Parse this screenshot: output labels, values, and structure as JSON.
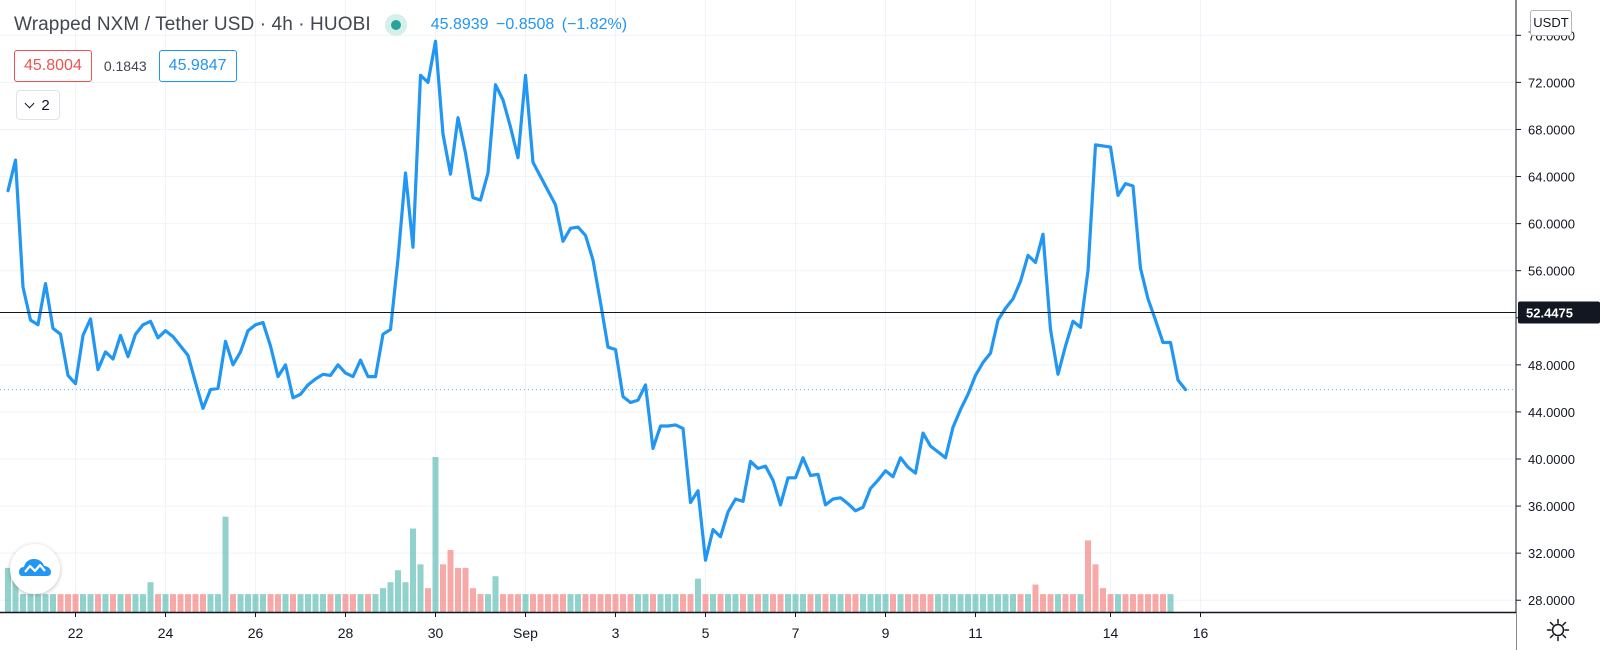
{
  "header": {
    "symbol": "Wrapped NXM / Tether USD · 4h · HUOBI",
    "ohlc_text": "45.8939  −0.8508  (−1.82%)",
    "sell_price": "45.8004",
    "spread": "0.1843",
    "buy_price": "45.9847",
    "indicators_collapsed_count": "2",
    "currency": "USDT"
  },
  "colors": {
    "line": "#2196f3",
    "volume_up": "#26a69a",
    "volume_down": "#ef5350",
    "grid": "#f0f3fa",
    "axis_text": "#131722"
  },
  "icons": [
    "chevron-down-icon",
    "tradingview-logo-icon",
    "settings-gear-icon",
    "live-status-dot-icon"
  ],
  "chart_data": {
    "type": "line",
    "y_axis_ticks": [
      "28.0000",
      "32.0000",
      "36.0000",
      "40.0000",
      "44.0000",
      "48.0000",
      "52.0000",
      "56.0000",
      "60.0000",
      "64.0000",
      "68.0000",
      "72.0000",
      "76.0000"
    ],
    "y_tick_values": [
      28,
      32,
      36,
      40,
      44,
      48,
      52,
      56,
      60,
      64,
      68,
      72,
      76
    ],
    "ylim": [
      27.0,
      79.0
    ],
    "x_axis_ticks": [
      "22",
      "24",
      "26",
      "28",
      "30",
      "Sep",
      "3",
      "5",
      "7",
      "9",
      "11",
      "14",
      "16"
    ],
    "x_tick_index": [
      9,
      21,
      33,
      45,
      57,
      69,
      81,
      93,
      105,
      117,
      129,
      147,
      159
    ],
    "crosshair_price": "52.4475",
    "crosshair_value": 52.4475,
    "last_price_value": 45.89,
    "series": [
      {
        "values": [
          62.8,
          65.4,
          54.6,
          51.8,
          51.4,
          54.9,
          51.1,
          50.6,
          47.1,
          46.4,
          50.5,
          51.9,
          47.6,
          49.1,
          48.5,
          50.5,
          48.7,
          50.6,
          51.4,
          51.7,
          50.3,
          50.9,
          50.4,
          49.6,
          48.8,
          46.5,
          44.3,
          45.9,
          46.0,
          50.0,
          48.0,
          49.1,
          50.9,
          51.4,
          51.6,
          49.6,
          47.0,
          48.0,
          45.2,
          45.5,
          46.3,
          46.8,
          47.2,
          47.1,
          48.0,
          47.3,
          47.0,
          48.4,
          47.0,
          47.0,
          50.6,
          51.0,
          57.0,
          64.3,
          58.0,
          72.6,
          72.0,
          75.5,
          67.6,
          64.2,
          69.0,
          66.0,
          62.2,
          62.0,
          64.3,
          71.8,
          70.5,
          68.2,
          65.6,
          72.6,
          65.2,
          64.0,
          62.8,
          61.6,
          58.5,
          59.6,
          59.7,
          59.0,
          56.9,
          53.3,
          49.5,
          49.3,
          45.3,
          44.8,
          45.0,
          46.3,
          40.9,
          42.8,
          42.8,
          42.9,
          42.6,
          36.3,
          37.3,
          31.4,
          34.0,
          33.4,
          35.5,
          36.6,
          36.4,
          39.8,
          39.2,
          39.4,
          38.2,
          36.1,
          38.4,
          38.4,
          40.1,
          38.6,
          38.7,
          36.1,
          36.6,
          36.7,
          36.2,
          35.6,
          35.9,
          37.5,
          38.2,
          39.0,
          38.5,
          40.1,
          39.3,
          38.8,
          42.2,
          41.1,
          40.6,
          40.1,
          42.7,
          44.2,
          45.5,
          47.1,
          48.2,
          49.0,
          51.8,
          52.8,
          53.6,
          55.1,
          57.3,
          56.7,
          59.1,
          51.0,
          47.2,
          49.6,
          51.7,
          51.2,
          56.0,
          66.7,
          66.6,
          66.5,
          62.4,
          63.4,
          63.2,
          56.2,
          53.6,
          51.8,
          49.9,
          49.9,
          46.7,
          45.9
        ]
      }
    ],
    "volume": {
      "values": [
        3.7,
        3.7,
        1.5,
        1.5,
        1.5,
        1.5,
        1.5,
        1.5,
        1.5,
        1.5,
        1.5,
        1.5,
        1.5,
        1.5,
        1.5,
        1.5,
        1.5,
        1.5,
        1.5,
        2.5,
        1.5,
        1.5,
        1.5,
        1.5,
        1.5,
        1.5,
        1.5,
        1.5,
        1.5,
        8.0,
        1.5,
        1.5,
        1.5,
        1.5,
        1.5,
        1.5,
        1.5,
        1.5,
        1.5,
        1.5,
        1.5,
        1.5,
        1.5,
        1.5,
        1.5,
        1.5,
        1.5,
        1.5,
        1.5,
        1.5,
        2.0,
        2.5,
        3.5,
        2.5,
        7.0,
        4.0,
        2.0,
        13.0,
        4.0,
        5.2,
        3.7,
        3.7,
        2.0,
        1.5,
        1.5,
        3.0,
        1.5,
        1.5,
        1.5,
        1.5,
        1.5,
        1.5,
        1.5,
        1.5,
        1.5,
        1.5,
        1.5,
        1.5,
        1.5,
        1.5,
        1.5,
        1.5,
        1.5,
        1.5,
        1.5,
        1.5,
        1.5,
        1.5,
        1.5,
        1.5,
        1.5,
        1.5,
        2.8,
        1.5,
        1.5,
        1.5,
        1.5,
        1.5,
        1.5,
        1.5,
        1.5,
        1.5,
        1.5,
        1.5,
        1.5,
        1.5,
        1.5,
        1.5,
        1.5,
        1.5,
        1.5,
        1.5,
        1.5,
        1.5,
        1.5,
        1.5,
        1.5,
        1.5,
        1.5,
        1.5,
        1.5,
        1.5,
        1.5,
        1.5,
        1.5,
        1.5,
        1.5,
        1.5,
        1.5,
        1.5,
        1.5,
        1.5,
        1.5,
        1.5,
        1.5,
        1.5,
        1.5,
        2.3,
        1.5,
        1.5,
        1.5,
        1.5,
        1.5,
        1.5,
        6.0,
        4.0,
        2.0,
        1.5,
        1.5,
        1.5,
        1.5,
        1.5,
        1.5,
        1.5,
        1.5,
        1.5
      ],
      "down": [
        0,
        0,
        0,
        0,
        0,
        0,
        0,
        1,
        1,
        1,
        0,
        0,
        1,
        0,
        1,
        0,
        1,
        0,
        0,
        0,
        1,
        0,
        1,
        1,
        1,
        1,
        1,
        0,
        0,
        0,
        1,
        0,
        0,
        0,
        0,
        1,
        1,
        0,
        1,
        0,
        0,
        0,
        0,
        1,
        0,
        1,
        1,
        0,
        1,
        0,
        0,
        0,
        0,
        0,
        0,
        0,
        1,
        0,
        1,
        1,
        1,
        1,
        1,
        1,
        0,
        0,
        1,
        1,
        1,
        0,
        1,
        1,
        1,
        1,
        1,
        0,
        0,
        1,
        1,
        1,
        1,
        1,
        1,
        1,
        0,
        0,
        1,
        0,
        0,
        0,
        1,
        1,
        0,
        1,
        0,
        1,
        0,
        0,
        1,
        0,
        1,
        0,
        1,
        1,
        0,
        0,
        0,
        1,
        0,
        1,
        0,
        0,
        1,
        1,
        0,
        0,
        0,
        0,
        1,
        0,
        1,
        1,
        1,
        1,
        0,
        0,
        0,
        0,
        0,
        0,
        0,
        0,
        0,
        0,
        0,
        1,
        0,
        1,
        1,
        1,
        0,
        1,
        1,
        0,
        1,
        1,
        1,
        1,
        0,
        1,
        1,
        1,
        1,
        1,
        1,
        0,
        1,
        1
      ]
    }
  }
}
